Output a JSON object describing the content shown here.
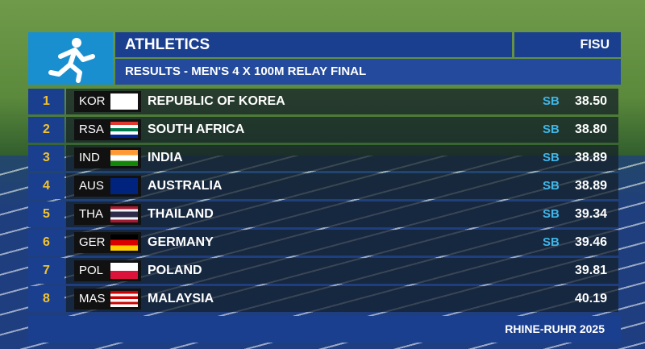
{
  "header": {
    "sport": "ATHLETICS",
    "brand": "FISU",
    "subtitle": "RESULTS - MEN'S 4 X 100M RELAY FINAL"
  },
  "rows": [
    {
      "rank": 1,
      "code": "KOR",
      "country": "REPUBLIC OF KOREA",
      "note": "SB",
      "time": "38.50"
    },
    {
      "rank": 2,
      "code": "RSA",
      "country": "SOUTH AFRICA",
      "note": "SB",
      "time": "38.80"
    },
    {
      "rank": 3,
      "code": "IND",
      "country": "INDIA",
      "note": "SB",
      "time": "38.89"
    },
    {
      "rank": 4,
      "code": "AUS",
      "country": "AUSTRALIA",
      "note": "SB",
      "time": "38.89"
    },
    {
      "rank": 5,
      "code": "THA",
      "country": "THAILAND",
      "note": "SB",
      "time": "39.34"
    },
    {
      "rank": 6,
      "code": "GER",
      "country": "GERMANY",
      "note": "SB",
      "time": "39.46"
    },
    {
      "rank": 7,
      "code": "POL",
      "country": "POLAND",
      "note": null,
      "time": "39.81"
    },
    {
      "rank": 8,
      "code": "MAS",
      "country": "MALAYSIA",
      "note": null,
      "time": "40.19"
    }
  ],
  "footer": "RHINE-RUHR 2025"
}
